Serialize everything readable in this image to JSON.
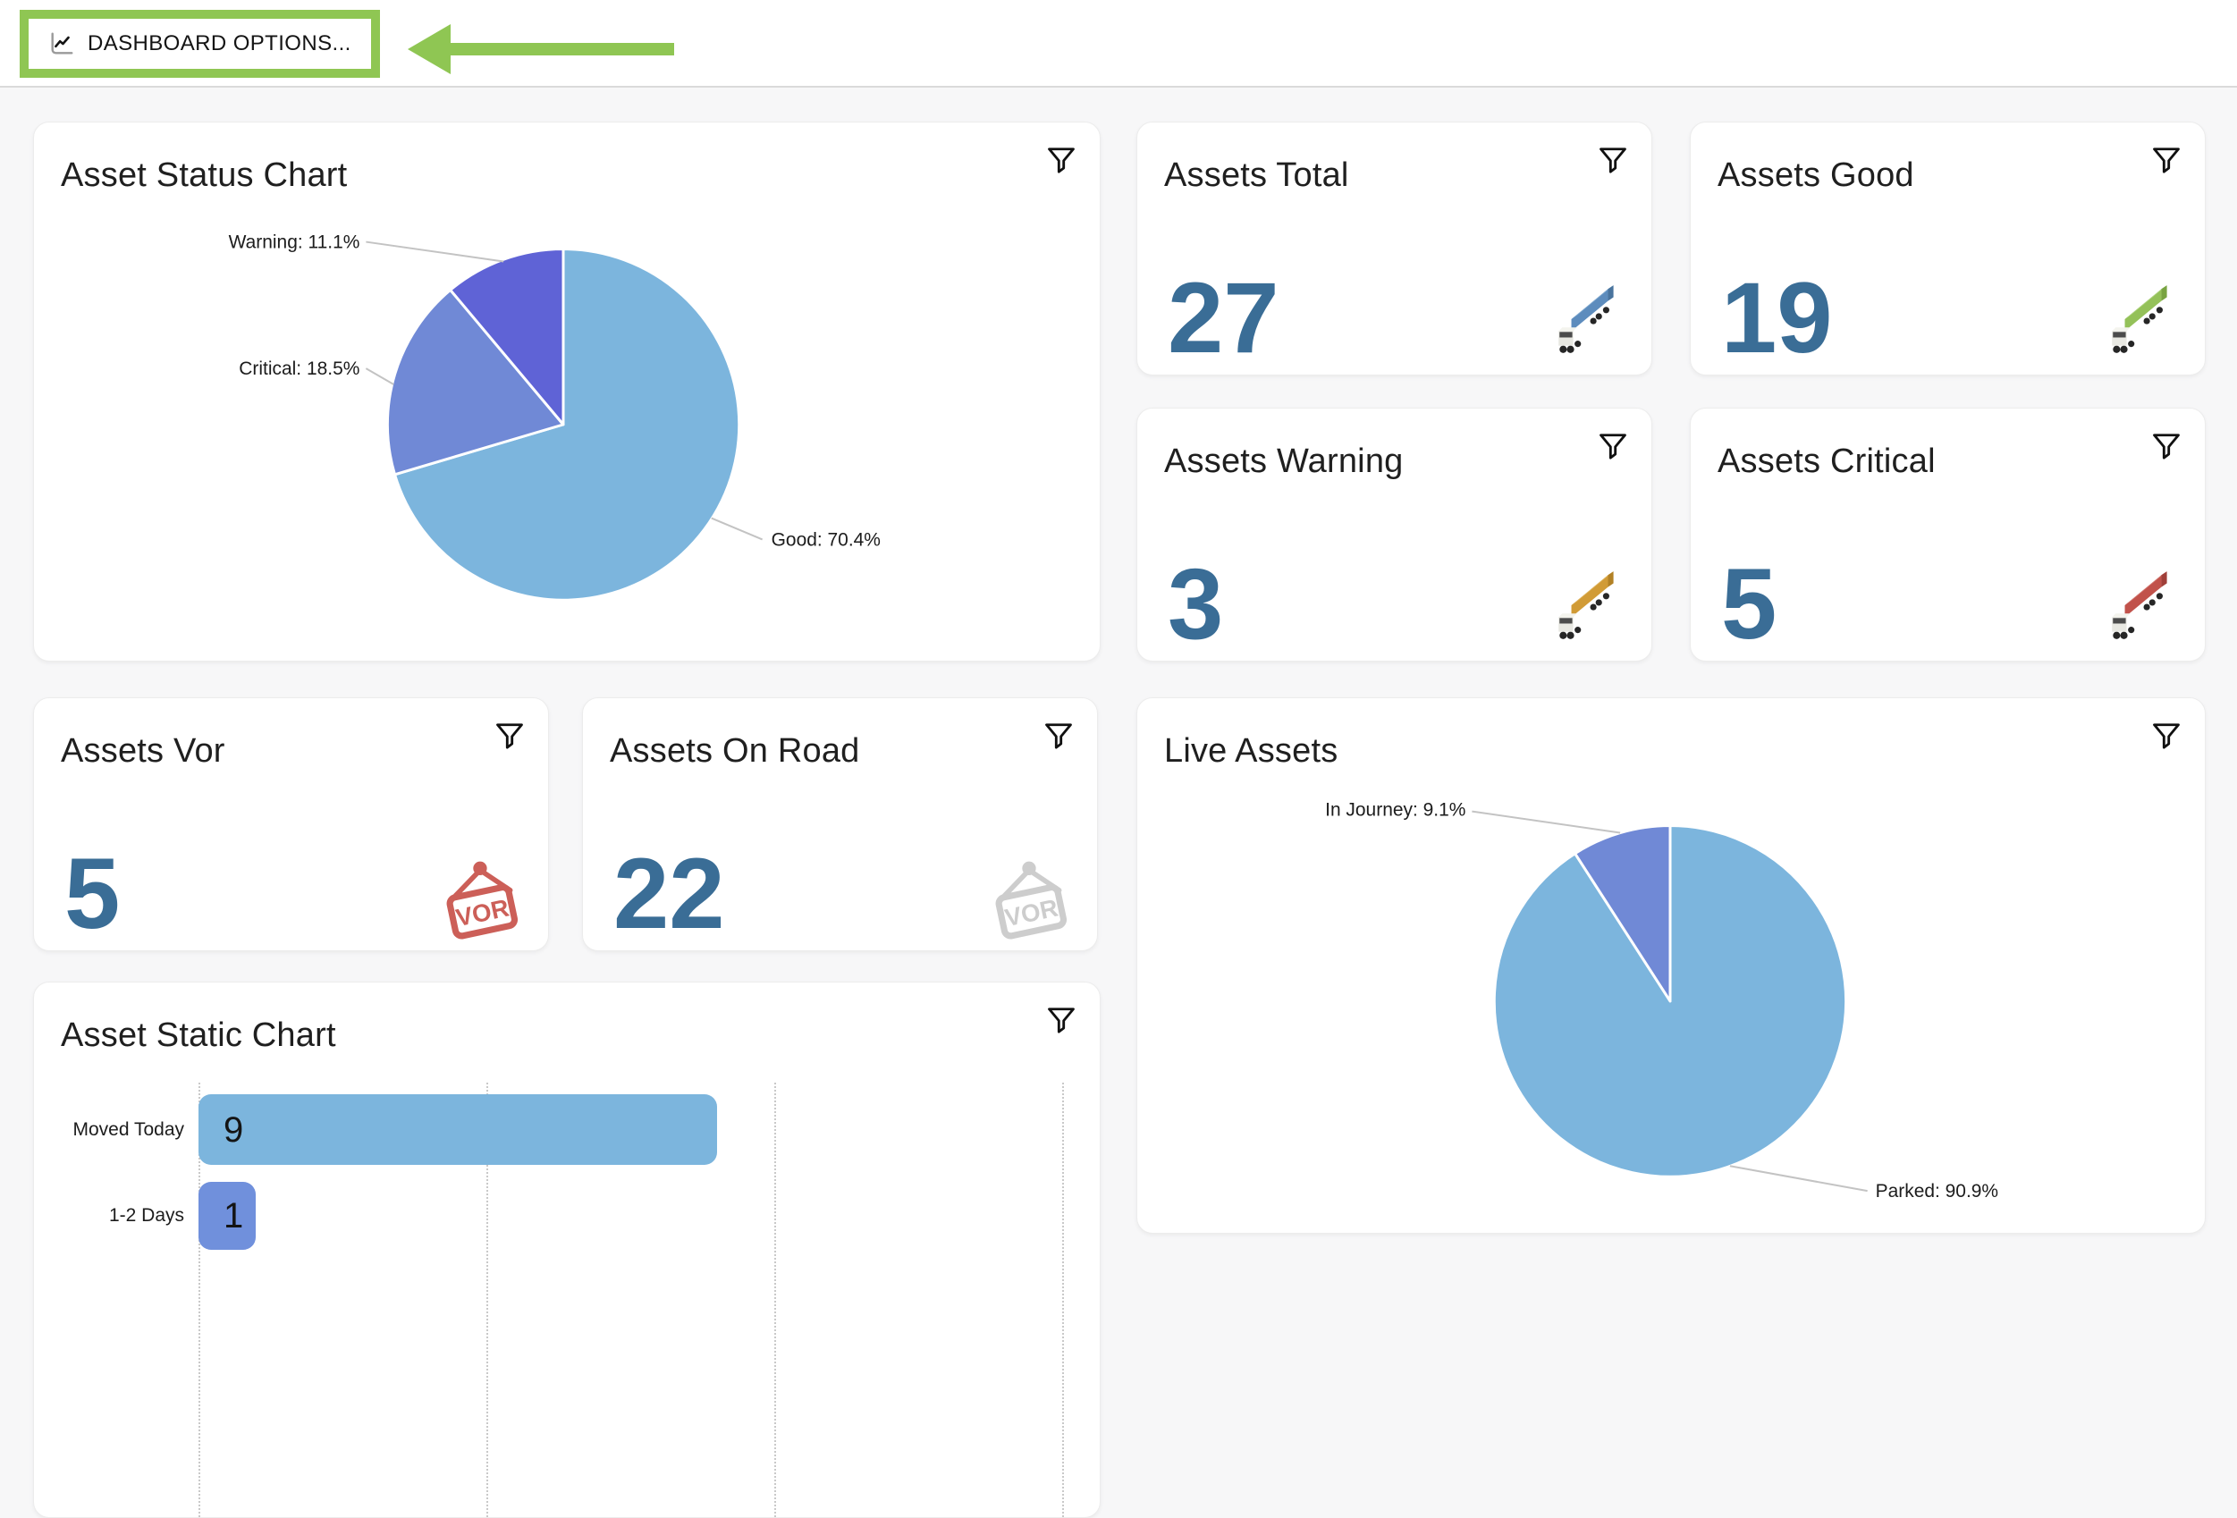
{
  "header": {
    "button_label": "DASHBOARD OPTIONS..."
  },
  "annotation": {
    "color": "#8fc653",
    "shape": "left-arrow-and-highlight-box"
  },
  "palette": {
    "light_blue": "#7cb5dd",
    "medium_blue": "#7089d6",
    "purple_blue": "#5f63d6",
    "number_blue": "#3a6d96",
    "vor_red": "#cc5f58",
    "vor_gray": "#cdcdcd",
    "truck_blue": {
      "body": "#5d8cbd",
      "top": "#87afd3",
      "end": "#49749e"
    },
    "truck_green": {
      "body": "#94c159",
      "top": "#b3d686",
      "end": "#78a341"
    },
    "truck_amber": {
      "body": "#d19b36",
      "top": "#e2ba67",
      "end": "#b28125"
    },
    "truck_red": {
      "body": "#c1524b",
      "top": "#d57d76",
      "end": "#a03f39"
    }
  },
  "icons": {
    "vor_text": "VOR",
    "filter_icon": "funnel-icon",
    "button_icon": "line-chart-icon",
    "truck_icon": "semi-truck-icon"
  },
  "cards": {
    "asset_status_chart": {
      "title": "Asset Status Chart"
    },
    "assets_total": {
      "title": "Assets Total",
      "value": "27",
      "icon": "truck-blue"
    },
    "assets_good": {
      "title": "Assets Good",
      "value": "19",
      "icon": "truck-green"
    },
    "assets_warning": {
      "title": "Assets Warning",
      "value": "3",
      "icon": "truck-amber"
    },
    "assets_critical": {
      "title": "Assets Critical",
      "value": "5",
      "icon": "truck-red"
    },
    "assets_vor": {
      "title": "Assets Vor",
      "value": "5",
      "icon": "vor-sign-red"
    },
    "assets_on_road": {
      "title": "Assets On Road",
      "value": "22",
      "icon": "vor-sign-gray"
    },
    "live_assets": {
      "title": "Live Assets"
    },
    "asset_static_chart": {
      "title": "Asset Static Chart"
    }
  },
  "chart_data": [
    {
      "type": "pie",
      "title": "Asset Status Chart",
      "direction": "clockwise",
      "start_angle_deg": 0,
      "slices": [
        {
          "label": "Good",
          "pct": 70.4,
          "color": "#7cb5dd"
        },
        {
          "label": "Critical",
          "pct": 18.5,
          "color": "#7089d6"
        },
        {
          "label": "Warning",
          "pct": 11.1,
          "color": "#5f63d6"
        }
      ],
      "label_format": "Name: pct%"
    },
    {
      "type": "pie",
      "title": "Live Assets",
      "direction": "clockwise",
      "start_angle_deg": 0,
      "slices": [
        {
          "label": "Parked",
          "pct": 90.9,
          "color": "#7cb5dd"
        },
        {
          "label": "In Journey",
          "pct": 9.1,
          "color": "#7089d6"
        }
      ],
      "label_format": "Name: pct%"
    },
    {
      "type": "bar",
      "title": "Asset Static Chart",
      "orientation": "horizontal",
      "categories": [
        "Moved Today",
        "1-2 Days"
      ],
      "values": [
        9,
        1
      ],
      "bar_colors": [
        "#7cb5dd",
        "#7090dc"
      ],
      "xlim": [
        0,
        15
      ],
      "grid_step": 5,
      "grid": true,
      "value_labels": true
    }
  ]
}
